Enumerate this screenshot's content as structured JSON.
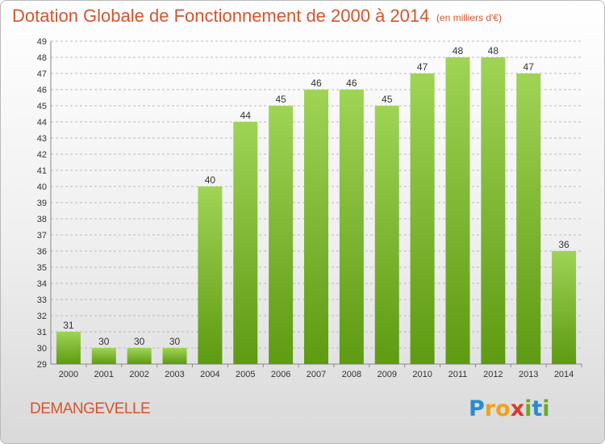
{
  "header": {
    "title": "Dotation Globale de Fonctionnement de 2000 à 2014",
    "subtitle": "(en milliers d'€)"
  },
  "footer": {
    "commune": "DEMANGEVELLE",
    "logo": {
      "letters": [
        "P",
        "r",
        "o",
        "x",
        "i",
        "t",
        "i"
      ],
      "colors": [
        "#2a8ad4",
        "#f0a21a",
        "#f0a21a",
        "#d83a2a",
        "#6aab2a",
        "#2a8ad4",
        "#6aab2a"
      ]
    }
  },
  "colors": {
    "title": "#d4552e",
    "bar_light": "#9fd455",
    "bar_dark": "#5e9a12",
    "grid": "#bbbbbb"
  },
  "chart_data": {
    "type": "bar",
    "title": "Dotation Globale de Fonctionnement de 2000 à 2014",
    "subtitle": "(en milliers d'€)",
    "categories": [
      "2000",
      "2001",
      "2002",
      "2003",
      "2004",
      "2005",
      "2006",
      "2007",
      "2008",
      "2009",
      "2010",
      "2011",
      "2012",
      "2013",
      "2014"
    ],
    "values": [
      31,
      30,
      30,
      30,
      40,
      44,
      45,
      46,
      46,
      45,
      47,
      48,
      48,
      47,
      36
    ],
    "ylim": [
      29,
      49
    ],
    "yticks": [
      29,
      30,
      31,
      32,
      33,
      34,
      35,
      36,
      37,
      38,
      39,
      40,
      41,
      42,
      43,
      44,
      45,
      46,
      47,
      48,
      49
    ],
    "grid": "horizontal dashed",
    "data_labels": true
  }
}
